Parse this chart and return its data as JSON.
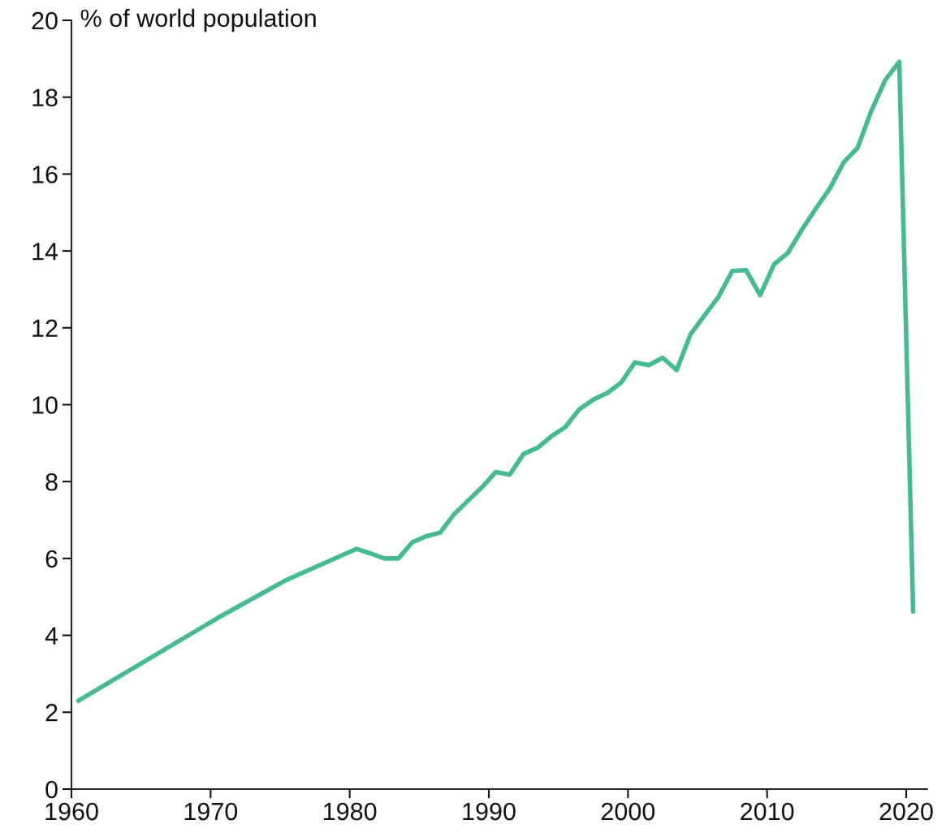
{
  "chart_data": {
    "type": "line",
    "ylabel": "% of world population",
    "x": [
      1960.5,
      1970.5,
      1975.5,
      1980.5,
      1981.5,
      1982.5,
      1983.5,
      1984.5,
      1985.5,
      1986.5,
      1987.5,
      1988.5,
      1989.5,
      1990.5,
      1991.5,
      1992.5,
      1993.5,
      1994.5,
      1995.5,
      1996.5,
      1997.5,
      1998.5,
      1999.5,
      2000.5,
      2001.5,
      2002.5,
      2003.5,
      2004.5,
      2005.5,
      2006.5,
      2007.5,
      2008.5,
      2009.5,
      2010.5,
      2011.5,
      2012.5,
      2013.5,
      2014.5,
      2015.5,
      2016.5,
      2017.5,
      2018.5,
      2019.5,
      2020.5
    ],
    "series": [
      {
        "color": "#45bb93",
        "values": [
          2.3,
          4.45,
          5.45,
          6.25,
          6.13,
          6.0,
          6.0,
          6.42,
          6.58,
          6.67,
          7.15,
          7.5,
          7.85,
          8.25,
          8.18,
          8.72,
          8.88,
          9.18,
          9.42,
          9.88,
          10.13,
          10.3,
          10.57,
          11.1,
          11.03,
          11.22,
          10.9,
          11.83,
          12.32,
          12.8,
          13.48,
          13.5,
          12.85,
          13.65,
          13.95,
          14.55,
          15.1,
          15.62,
          16.3,
          16.68,
          17.65,
          18.45,
          18.92,
          4.62
        ]
      }
    ],
    "xlim": [
      1960,
      2021.5
    ],
    "xticks": [
      1960,
      1970,
      1980,
      1990,
      2000,
      2010,
      2020
    ],
    "ylim": [
      0,
      20
    ],
    "yticks": [
      0,
      2,
      4,
      6,
      8,
      10,
      12,
      14,
      16,
      18,
      20
    ],
    "grid": false,
    "marker": "none",
    "line_style": "solid"
  }
}
